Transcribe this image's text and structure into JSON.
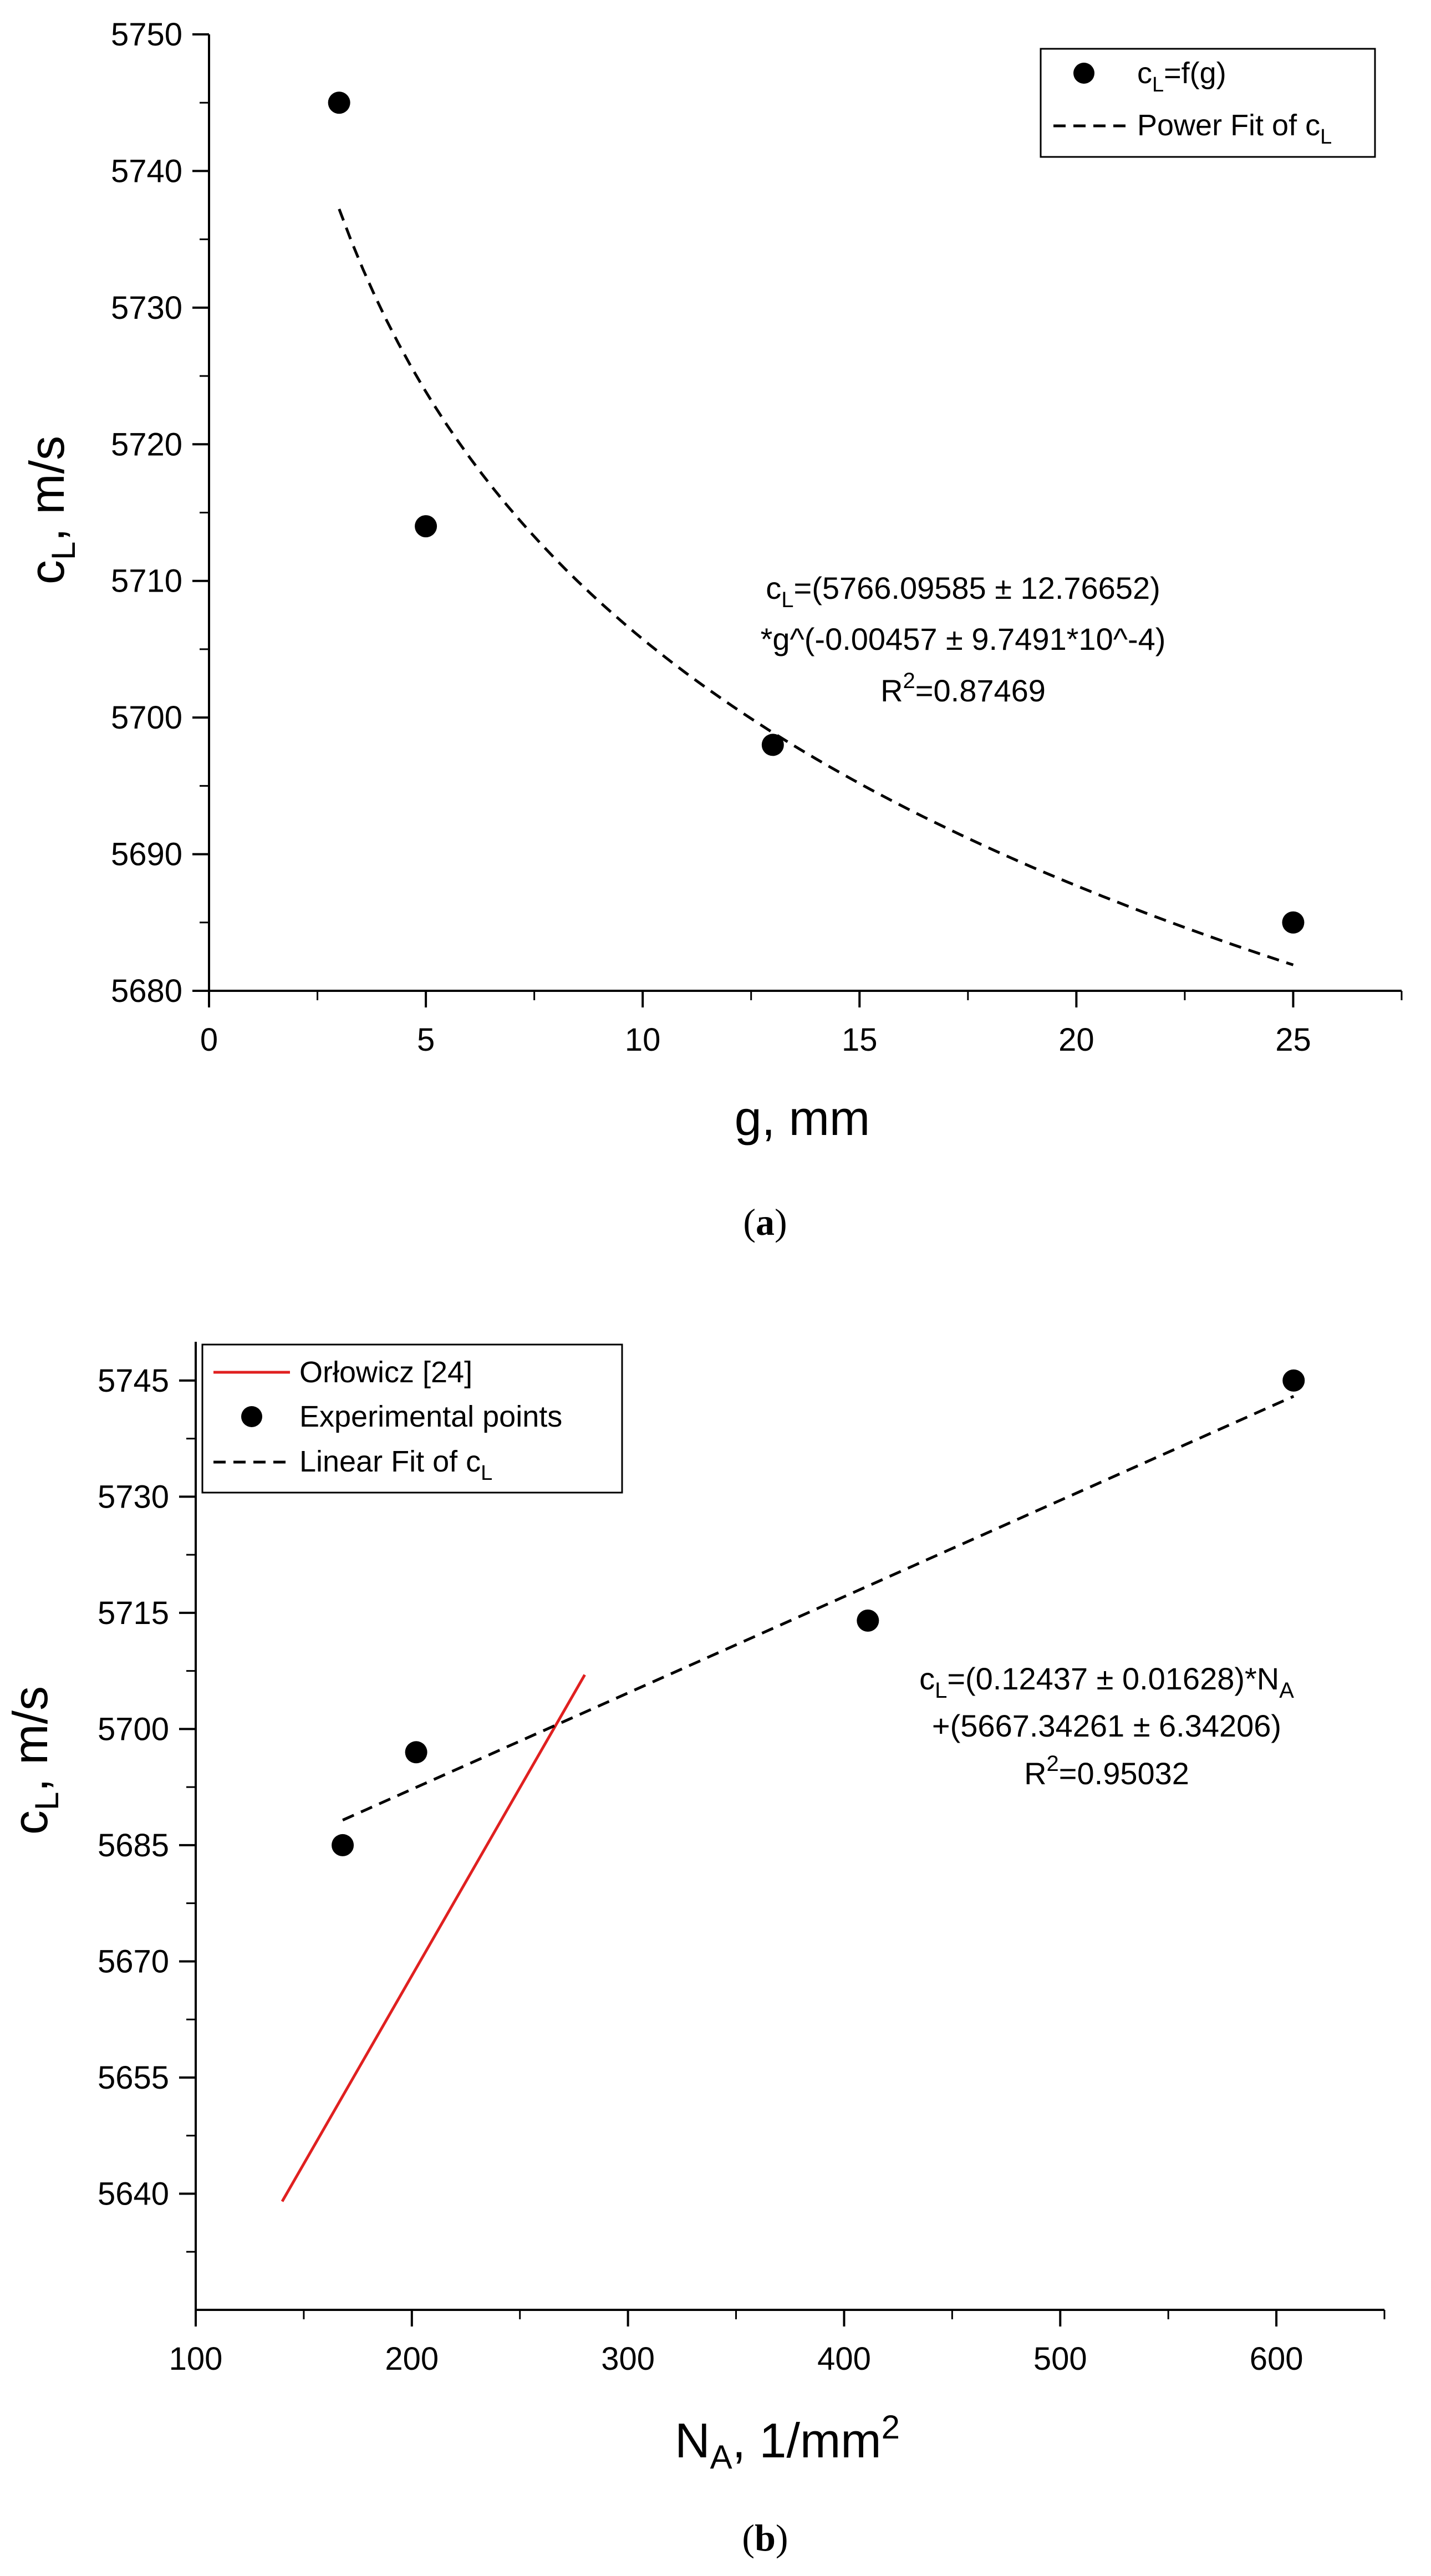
{
  "chart_data": [
    {
      "type": "scatter",
      "caption": "(a)",
      "caption_letter": "a",
      "xlabel": "g, mm",
      "ylabel_main": "c",
      "ylabel_sub": "L",
      "ylabel_rest": ", m/s",
      "xlim": [
        0,
        27.5
      ],
      "ylim": [
        5680,
        5750
      ],
      "xticks": [
        0,
        5,
        10,
        15,
        20,
        25
      ],
      "yticks": [
        5680,
        5690,
        5700,
        5710,
        5720,
        5730,
        5740,
        5750
      ],
      "points": [
        {
          "x": 3,
          "y": 5745
        },
        {
          "x": 5,
          "y": 5714
        },
        {
          "x": 13,
          "y": 5698
        },
        {
          "x": 25,
          "y": 5685
        }
      ],
      "fit": {
        "kind": "power",
        "a": 5766.09585,
        "b": -0.00457,
        "x_from": 3,
        "x_to": 25
      },
      "legend": [
        {
          "kind": "marker",
          "main": "c",
          "sub": "L",
          "rest": "=f(g)"
        },
        {
          "kind": "dash",
          "main": "Power Fit of c",
          "sub": "L",
          "rest": ""
        }
      ],
      "annotation": {
        "line1_main": "c",
        "line1_sub": "L",
        "line1_rest": "=(5766.09585 ± 12.76652)",
        "line2": "*g^(-0.00457 ± 9.7491*10^-4)",
        "line3_main": "R",
        "line3_sup": "2",
        "line3_rest": "=0.87469"
      }
    },
    {
      "type": "scatter",
      "caption": "(b)",
      "caption_letter": "b",
      "xlabel_main": "N",
      "xlabel_sub": "A",
      "xlabel_rest": ", 1/mm",
      "xlabel_sup": "2",
      "ylabel_main": "c",
      "ylabel_sub": "L",
      "ylabel_rest": ", m/s",
      "xlim": [
        100,
        650
      ],
      "ylim": [
        5625,
        5750
      ],
      "xticks": [
        100,
        200,
        300,
        400,
        500,
        600
      ],
      "yticks": [
        5640,
        5655,
        5670,
        5685,
        5700,
        5715,
        5730,
        5745
      ],
      "points": [
        {
          "x": 168,
          "y": 5685
        },
        {
          "x": 202,
          "y": 5697
        },
        {
          "x": 411,
          "y": 5714
        },
        {
          "x": 608,
          "y": 5745
        }
      ],
      "fit": {
        "kind": "linear",
        "slope": 0.12437,
        "intercept": 5667.34261,
        "x_from": 168,
        "x_to": 608
      },
      "reference_line": {
        "name": "Orłowicz [24]",
        "color": "#e02020",
        "x": [
          140,
          280
        ],
        "y": [
          5639,
          5707
        ]
      },
      "legend": [
        {
          "kind": "redline",
          "main": "Orłowicz [24]",
          "sub": "",
          "rest": ""
        },
        {
          "kind": "marker",
          "main": "Experimental points",
          "sub": "",
          "rest": ""
        },
        {
          "kind": "dash",
          "main": "Linear Fit of c",
          "sub": "L",
          "rest": ""
        }
      ],
      "annotation": {
        "line1_main": "c",
        "line1_sub": "L",
        "line1_rest": "=(0.12437 ± 0.01628)*N",
        "line1_sub2": "A",
        "line2": "+(5667.34261 ± 6.34206)",
        "line3_main": "R",
        "line3_sup": "2",
        "line3_rest": "=0.95032"
      }
    }
  ]
}
